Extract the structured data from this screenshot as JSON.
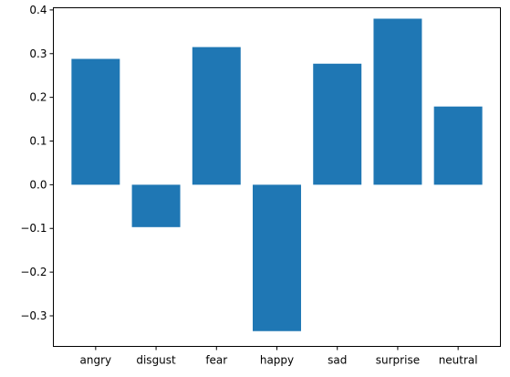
{
  "chart_data": {
    "type": "bar",
    "categories": [
      "angry",
      "disgust",
      "fear",
      "happy",
      "sad",
      "surprise",
      "neutral"
    ],
    "values": [
      0.288,
      -0.097,
      0.315,
      -0.335,
      0.277,
      0.38,
      0.179
    ],
    "title": "",
    "xlabel": "",
    "ylabel": "",
    "ylim": [
      -0.37,
      0.405
    ],
    "yticks": [
      0.4,
      0.3,
      0.2,
      0.1,
      0.0,
      -0.1,
      -0.2,
      -0.3
    ],
    "ytick_labels": [
      "0.4",
      "0.3",
      "0.2",
      "0.1",
      "0.0",
      "−0.1",
      "−0.2",
      "−0.3"
    ],
    "bar_color": "#1f77b4",
    "grid": false,
    "legend": "none"
  }
}
